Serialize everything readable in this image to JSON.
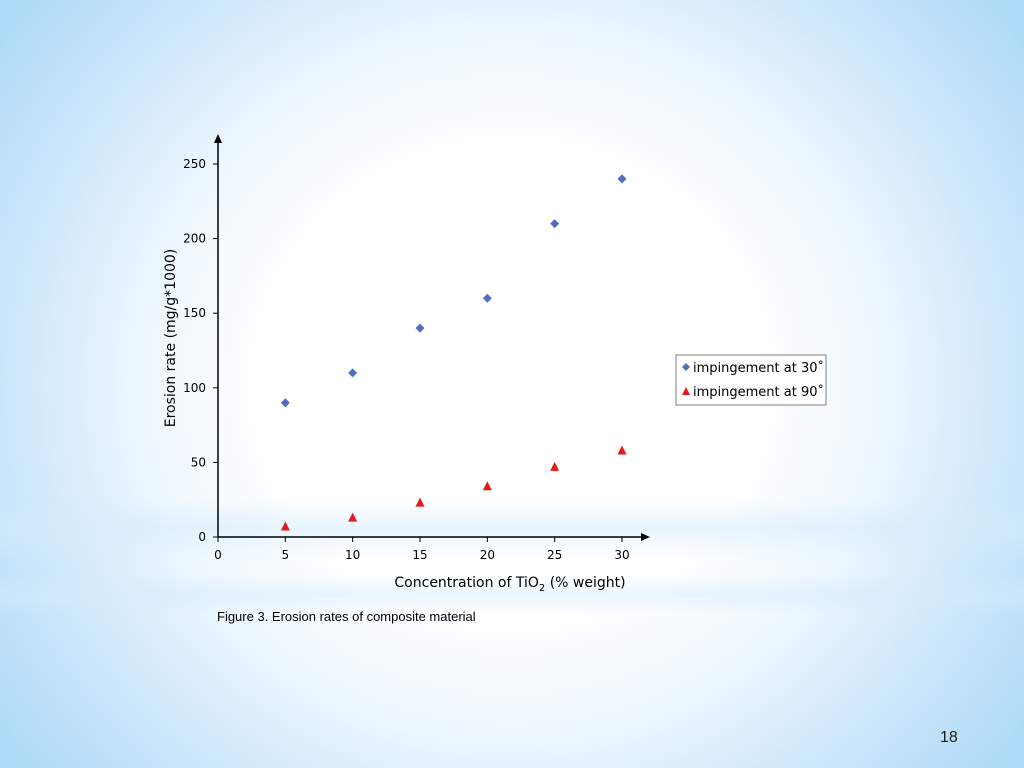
{
  "chart_data": {
    "type": "scatter",
    "xlabel_main": "Concentration of TiO",
    "xlabel_sub": "2",
    "xlabel_rest": " (% weight)",
    "ylabel": "Erosion rate (mg/g*1000)",
    "xlim": [
      0,
      30
    ],
    "ylim": [
      0,
      250
    ],
    "x_ticks": [
      0,
      5,
      10,
      15,
      20,
      25,
      30
    ],
    "y_ticks": [
      0,
      50,
      100,
      150,
      200,
      250
    ],
    "grid": false,
    "legend_position": "right",
    "series": [
      {
        "name": "impingement at 30˚",
        "marker": "diamond",
        "color": "#4e6fbf",
        "x": [
          5,
          10,
          15,
          20,
          25,
          30
        ],
        "y": [
          90,
          110,
          140,
          160,
          210,
          240
        ]
      },
      {
        "name": "impingement at 90˚",
        "marker": "triangle",
        "color": "#e41a1a",
        "x": [
          5,
          10,
          15,
          20,
          25,
          30
        ],
        "y": [
          7,
          13,
          23,
          34,
          47,
          58
        ]
      }
    ]
  },
  "caption": "Figure 3. Erosion rates of composite material",
  "page_number": "18"
}
